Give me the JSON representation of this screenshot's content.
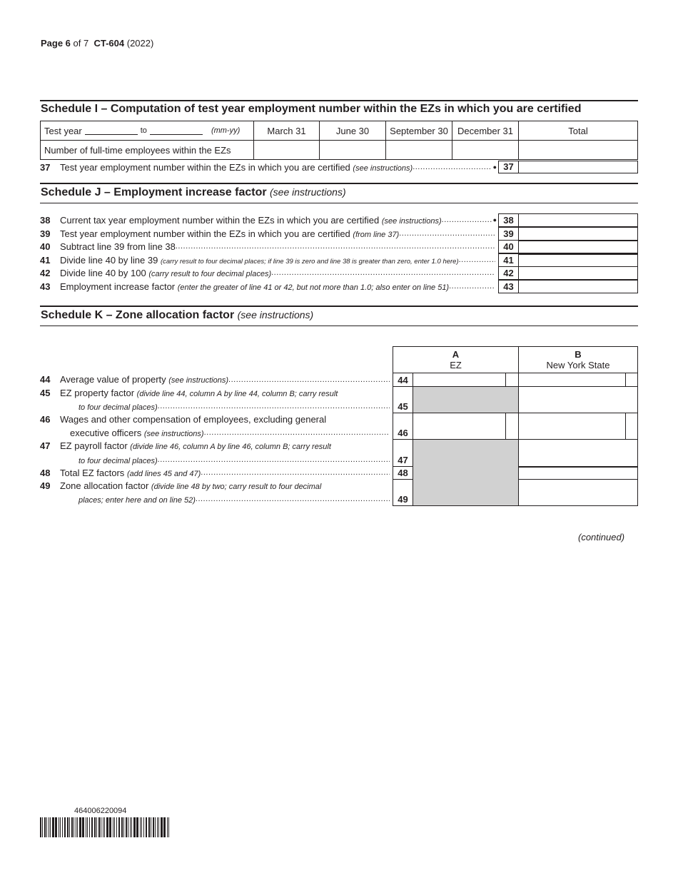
{
  "header": {
    "page_word": "Page 6",
    "of_text": "of 7",
    "form_id": "CT-604",
    "year": "(2022)"
  },
  "schedule_i": {
    "title": "Schedule I – Computation of test year employment number within the EZs in which you are certified",
    "test_year_label": "Test year",
    "to_label": "to",
    "format_hint": "(mm-yy)",
    "columns": [
      "March 31",
      "June 30",
      "September 30",
      "December 31",
      "Total"
    ],
    "row_label": "Number of full-time employees within the EZs",
    "line37": {
      "num": "37",
      "text": "Test year employment number within the EZs in which you are certified",
      "note": "(see instructions)",
      "bullet": "●",
      "box": "37"
    }
  },
  "schedule_j": {
    "title": "Schedule J – Employment increase factor",
    "title_note": "(see instructions)",
    "lines": [
      {
        "num": "38",
        "text": "Current tax year employment number within the EZs in which you are certified",
        "note": "(see instructions)",
        "bullet": "●",
        "box": "38"
      },
      {
        "num": "39",
        "text": "Test year employment number within the EZs in which you are certified",
        "note": "(from line 37)",
        "bullet": "",
        "box": "39"
      },
      {
        "num": "40",
        "text": "Subtract line 39 from line 38",
        "note": "",
        "bullet": "",
        "box": "40"
      },
      {
        "num": "41",
        "text": "Divide line 40 by line 39",
        "note": "(carry result to four decimal places; if line 39 is zero and line 38 is greater than zero, enter 1.0 here)",
        "bullet": "",
        "box": "41"
      },
      {
        "num": "42",
        "text": "Divide line 40 by 100",
        "note": "(carry result to four decimal places)",
        "bullet": "",
        "box": "42"
      },
      {
        "num": "43",
        "text": "Employment increase factor",
        "note": "(enter the greater of line 41 or 42, but not more than 1.0; also enter on line 51)",
        "bullet": "",
        "box": "43"
      }
    ]
  },
  "schedule_k": {
    "title": "Schedule K – Zone allocation factor",
    "title_note": "(see instructions)",
    "col_a": {
      "letter": "A",
      "label": "EZ"
    },
    "col_b": {
      "letter": "B",
      "label": "New York State"
    },
    "lines": [
      {
        "num": "44",
        "text": "Average value of property",
        "note": "(see instructions)",
        "text2": "",
        "note2": "",
        "box": "44"
      },
      {
        "num": "45",
        "text": "EZ property factor",
        "note": "(divide line 44, column A by line 44, column B; carry result",
        "text2": "",
        "note2": "to four decimal places)",
        "box": "45"
      },
      {
        "num": "46",
        "text": "Wages and other compensation of employees, excluding general",
        "note": "",
        "text2": "executive officers",
        "note2": "(see instructions)",
        "box": "46"
      },
      {
        "num": "47",
        "text": "EZ payroll factor",
        "note": "(divide line 46, column A by line 46, column B; carry result",
        "text2": "",
        "note2": "to four decimal places)",
        "box": "47"
      },
      {
        "num": "48",
        "text": "Total EZ factors",
        "note": "(add lines 45 and 47)",
        "text2": "",
        "note2": "",
        "box": "48"
      },
      {
        "num": "49",
        "text": "Zone allocation factor",
        "note": "(divide line 48 by two; carry result to four decimal",
        "text2": "",
        "note2": "places; enter here and on line 52)",
        "box": "49"
      }
    ]
  },
  "continued": "(continued)",
  "barcode_number": "464006220094",
  "colors": {
    "ink": "#231f20",
    "shade": "#d1d1d1"
  }
}
